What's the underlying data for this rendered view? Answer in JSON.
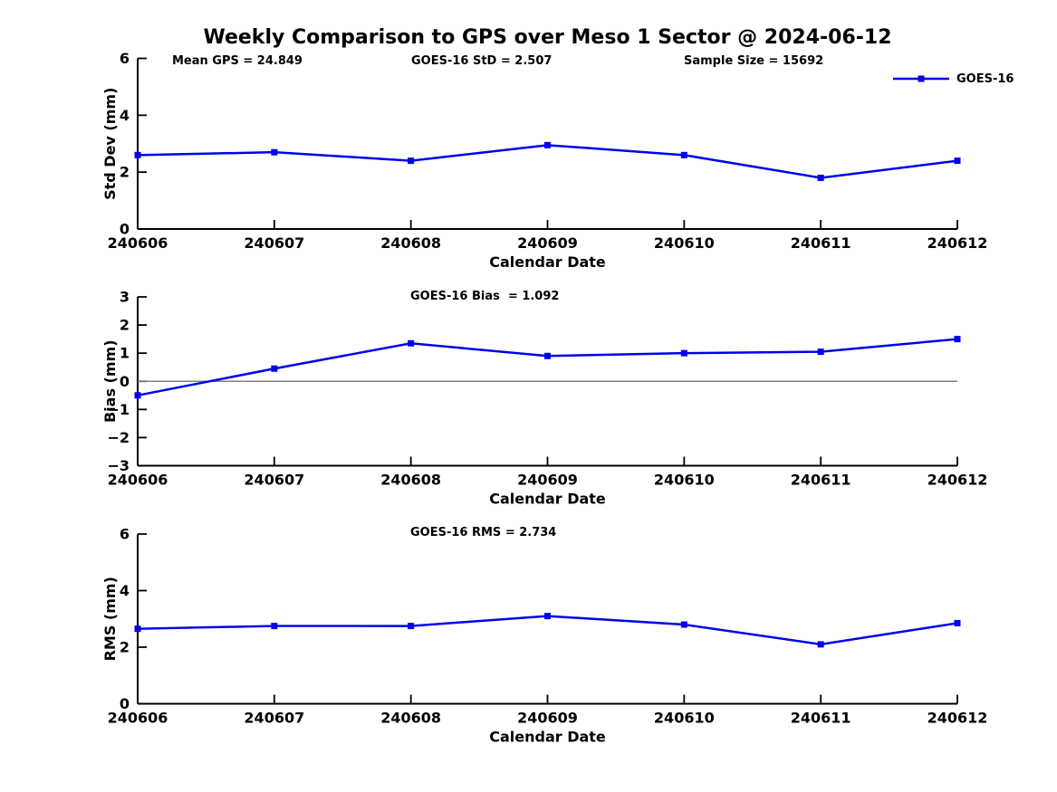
{
  "title": "Weekly Comparison to GPS over Meso 1 Sector @ 2024-06-12",
  "header_annotations": {
    "mean_gps": "Mean GPS = 24.849",
    "goes16_std": "GOES-16 StD = 2.507",
    "sample_size": "Sample Size = 15692"
  },
  "legend": {
    "label": "GOES-16",
    "position": "top-right"
  },
  "colors": {
    "series": "#0000EE",
    "zero_line": "#808080",
    "axis": "#000000",
    "background": "#FFFFFF"
  },
  "chart_data": [
    {
      "type": "line",
      "id": "std-dev",
      "annotation": "",
      "xlabel": "Calendar Date",
      "ylabel": "Std Dev (mm)",
      "categories": [
        "240606",
        "240607",
        "240608",
        "240609",
        "240610",
        "240611",
        "240612"
      ],
      "series": [
        {
          "name": "GOES-16",
          "values": [
            2.6,
            2.7,
            2.4,
            2.95,
            2.6,
            1.8,
            2.4
          ]
        }
      ],
      "ylim": [
        0,
        6
      ],
      "yticks": [
        0,
        2,
        4,
        6
      ],
      "zero_line": false,
      "grid": false
    },
    {
      "type": "line",
      "id": "bias",
      "annotation": "GOES-16 Bias  = 1.092",
      "xlabel": "Calendar Date",
      "ylabel": "Bias (mm)",
      "categories": [
        "240606",
        "240607",
        "240608",
        "240609",
        "240610",
        "240611",
        "240612"
      ],
      "series": [
        {
          "name": "GOES-16",
          "values": [
            -0.5,
            0.45,
            1.35,
            0.9,
            1.0,
            1.05,
            1.5
          ]
        }
      ],
      "ylim": [
        -3,
        3
      ],
      "yticks": [
        -3,
        -2,
        -1,
        0,
        1,
        2,
        3
      ],
      "zero_line": true,
      "grid": false
    },
    {
      "type": "line",
      "id": "rms",
      "annotation": "GOES-16 RMS = 2.734",
      "xlabel": "Calendar Date",
      "ylabel": "RMS (mm)",
      "categories": [
        "240606",
        "240607",
        "240608",
        "240609",
        "240610",
        "240611",
        "240612"
      ],
      "series": [
        {
          "name": "GOES-16",
          "values": [
            2.65,
            2.75,
            2.75,
            3.1,
            2.8,
            2.1,
            2.85
          ]
        }
      ],
      "ylim": [
        0,
        6
      ],
      "yticks": [
        0,
        2,
        4,
        6
      ],
      "zero_line": false,
      "grid": false
    }
  ]
}
